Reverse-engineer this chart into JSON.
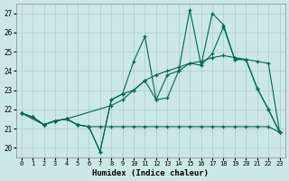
{
  "xlabel": "Humidex (Indice chaleur)",
  "background_color": "#cce8e4",
  "grid_color": "#aaccc8",
  "line_color": "#006655",
  "xlim": [
    -0.5,
    23.5
  ],
  "ylim": [
    19.5,
    27.5
  ],
  "xticks": [
    0,
    1,
    2,
    3,
    4,
    5,
    6,
    7,
    8,
    9,
    10,
    11,
    12,
    13,
    14,
    15,
    16,
    17,
    18,
    19,
    20,
    21,
    22,
    23
  ],
  "yticks": [
    20,
    21,
    22,
    23,
    24,
    25,
    26,
    27
  ],
  "series": [
    {
      "x": [
        0,
        1,
        2,
        3,
        4,
        5,
        6,
        7,
        8,
        9,
        10,
        11,
        12,
        13,
        14,
        15,
        16,
        17,
        18,
        19,
        20,
        21,
        22,
        23
      ],
      "y": [
        21.8,
        21.6,
        21.2,
        21.4,
        21.5,
        21.2,
        21.1,
        21.1,
        21.1,
        21.1,
        21.1,
        21.1,
        21.1,
        21.1,
        21.1,
        21.1,
        21.1,
        21.1,
        21.1,
        21.1,
        21.1,
        21.1,
        21.1,
        20.8
      ]
    },
    {
      "x": [
        0,
        2,
        3,
        4,
        8,
        9,
        10,
        11,
        12,
        13,
        14,
        15,
        16,
        17,
        18,
        19,
        20,
        21,
        22,
        23
      ],
      "y": [
        21.8,
        21.2,
        21.4,
        21.5,
        22.2,
        22.5,
        23.0,
        23.5,
        23.8,
        24.0,
        24.2,
        24.4,
        24.5,
        24.7,
        24.8,
        24.7,
        24.6,
        24.5,
        24.4,
        20.8
      ]
    },
    {
      "x": [
        0,
        1,
        2,
        3,
        4,
        5,
        6,
        7,
        8,
        9,
        10,
        11,
        12,
        13,
        14,
        15,
        16,
        17,
        18,
        19,
        20,
        21,
        22,
        23
      ],
      "y": [
        21.8,
        21.6,
        21.2,
        21.4,
        21.5,
        21.2,
        21.1,
        19.8,
        22.5,
        22.8,
        24.5,
        25.8,
        22.5,
        22.6,
        24.0,
        24.4,
        24.3,
        24.9,
        26.3,
        24.6,
        24.6,
        23.1,
        22.0,
        20.8
      ]
    },
    {
      "x": [
        0,
        1,
        2,
        3,
        4,
        5,
        6,
        7,
        8,
        9,
        10,
        11,
        12,
        13,
        14,
        15,
        16,
        17,
        18,
        19,
        20,
        21,
        22,
        23
      ],
      "y": [
        21.8,
        21.6,
        21.2,
        21.4,
        21.5,
        21.2,
        21.1,
        19.8,
        22.5,
        22.8,
        23.0,
        23.5,
        22.5,
        23.8,
        24.0,
        27.2,
        24.3,
        27.0,
        26.4,
        24.6,
        24.6,
        23.1,
        22.0,
        20.8
      ]
    }
  ]
}
